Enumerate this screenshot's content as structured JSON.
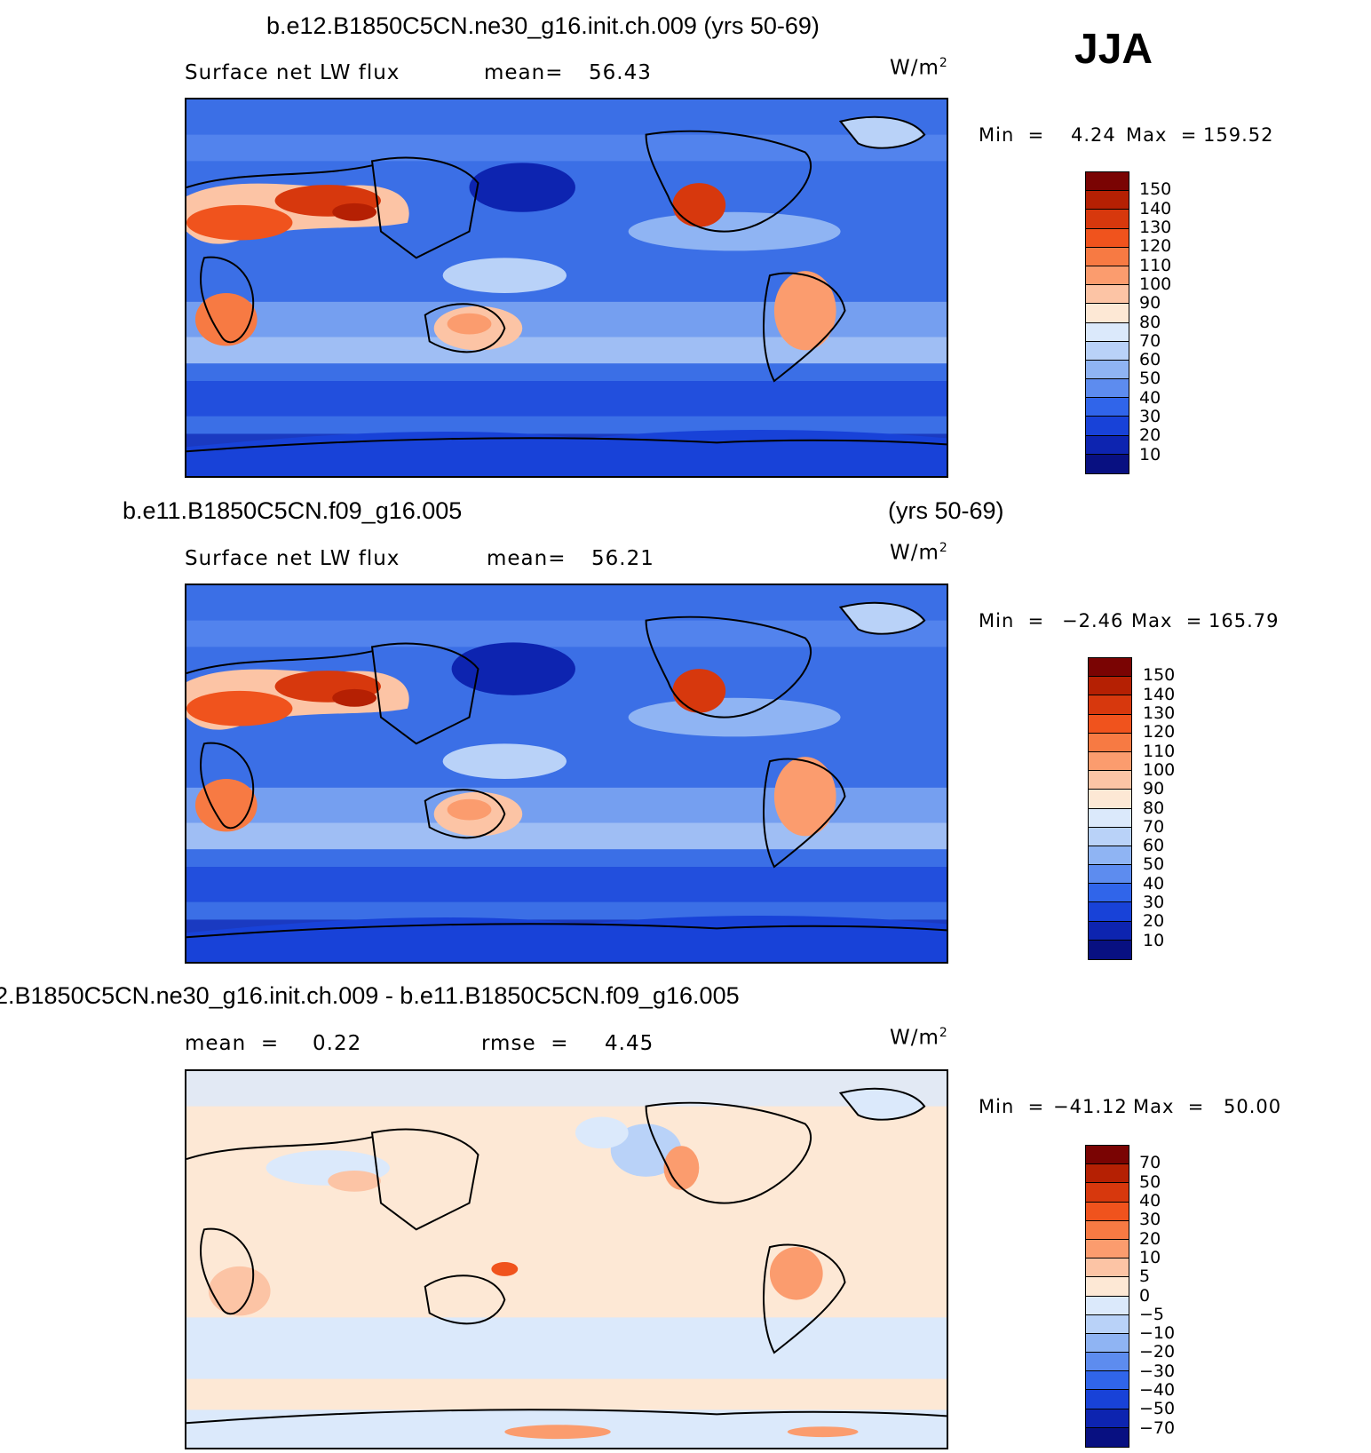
{
  "season": "JJA",
  "panels": [
    {
      "title": "b.e12.B1850C5CN.ne30_g16.init.ch.009 (yrs 50-69)",
      "title_extra": "",
      "variable": "Surface net LW flux",
      "stat1": "mean=",
      "stat1_value": "56.43",
      "stat2": "",
      "stat2_value": "",
      "units": "W/m",
      "units_exp": "2",
      "range_min_label": "Min  =",
      "range_min": "4.24",
      "range_max_label": "Max  =",
      "range_max": "159.52",
      "colorbar_ticks": [
        "150",
        "140",
        "130",
        "120",
        "110",
        "100",
        "90",
        "80",
        "70",
        "60",
        "50",
        "40",
        "30",
        "20",
        "10"
      ]
    },
    {
      "title": "b.e11.B1850C5CN.f09_g16.005",
      "title_extra": "(yrs 50-69)",
      "variable": "Surface net LW flux",
      "stat1": "mean=",
      "stat1_value": "56.21",
      "stat2": "",
      "stat2_value": "",
      "units": "W/m",
      "units_exp": "2",
      "range_min_label": "Min  =",
      "range_min": "−2.46",
      "range_max_label": "Max  =",
      "range_max": "165.79",
      "colorbar_ticks": [
        "150",
        "140",
        "130",
        "120",
        "110",
        "100",
        "90",
        "80",
        "70",
        "60",
        "50",
        "40",
        "30",
        "20",
        "10"
      ]
    },
    {
      "title": "2.B1850C5CN.ne30_g16.init.ch.009 - b.e11.B1850C5CN.f09_g16.005",
      "title_extra": "",
      "variable": "",
      "stat1": "mean  =",
      "stat1_value": "0.22",
      "stat2": "rmse  =",
      "stat2_value": "4.45",
      "units": "W/m",
      "units_exp": "2",
      "range_min_label": "Min  =",
      "range_min": "−41.12",
      "range_max_label": "Max  =",
      "range_max": "50.00",
      "colorbar_ticks": [
        "70",
        "50",
        "40",
        "30",
        "20",
        "10",
        "5",
        "0",
        "−5",
        "−10",
        "−20",
        "−30",
        "−40",
        "−50",
        "−70"
      ]
    }
  ],
  "colors": {
    "flux_scale": [
      "#7a0403",
      "#b52003",
      "#d7380d",
      "#f0531d",
      "#f77a43",
      "#fb9c6e",
      "#fcc4a5",
      "#fde8d5",
      "#dbe9fb",
      "#b9d2f8",
      "#8fb4f3",
      "#5d8cef",
      "#3065ea",
      "#1842d8",
      "#0d24b0",
      "#081081"
    ],
    "diff_scale": [
      "#7a0403",
      "#b52003",
      "#d7380d",
      "#f0531d",
      "#f77a43",
      "#fb9c6e",
      "#fcc4a5",
      "#fde8d5",
      "#dbe9fb",
      "#b9d2f8",
      "#8fb4f3",
      "#5d8cef",
      "#3065ea",
      "#1842d8",
      "#0d24b0",
      "#081081"
    ]
  }
}
